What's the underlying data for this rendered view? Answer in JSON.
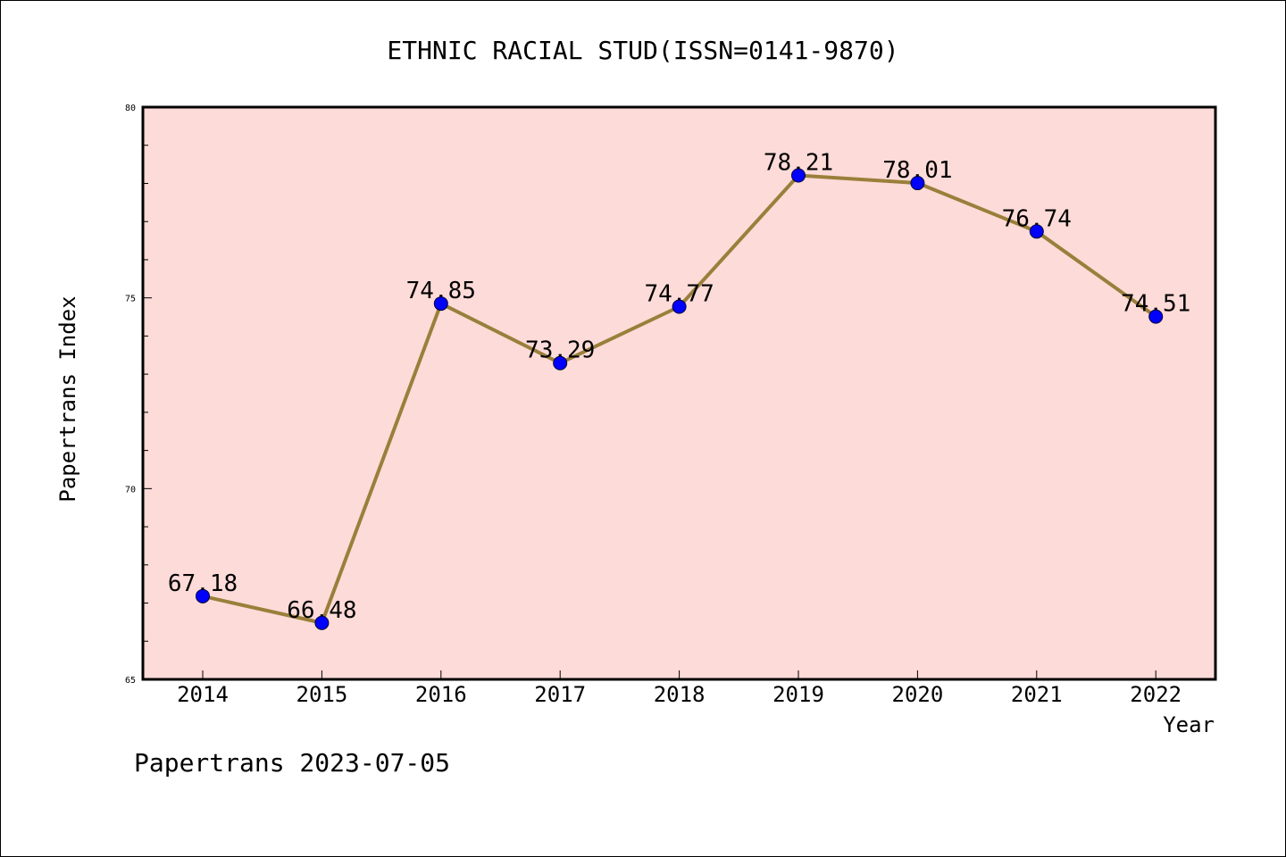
{
  "chart_data": {
    "type": "line",
    "title": "ETHNIC RACIAL STUD(ISSN=0141-9870)",
    "xlabel": "Year",
    "ylabel": "Papertrans Index",
    "categories": [
      "2014",
      "2015",
      "2016",
      "2017",
      "2018",
      "2019",
      "2020",
      "2021",
      "2022"
    ],
    "values": [
      67.18,
      66.48,
      74.85,
      73.29,
      74.77,
      78.21,
      78.01,
      76.74,
      74.51
    ],
    "data_labels": [
      "67.18",
      "66.48",
      "74.85",
      "73.29",
      "74.77",
      "78.21",
      "78.01",
      "76.74",
      "74.51"
    ],
    "ylim": [
      65,
      80
    ],
    "yticks": [
      65,
      70,
      75,
      80
    ],
    "ytick_labels": [
      "65",
      "70",
      "75",
      "80"
    ],
    "grid": false,
    "colors": {
      "plot_background": "#fddbd8",
      "line": "#9a7f3b",
      "marker": "#0000ff"
    }
  },
  "footer": "Papertrans 2023-07-05"
}
